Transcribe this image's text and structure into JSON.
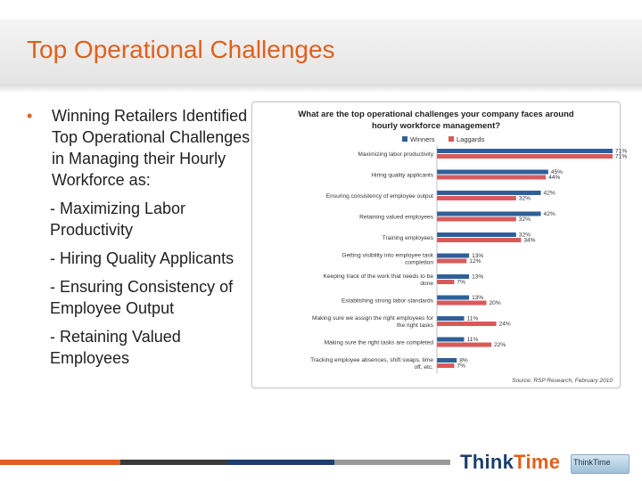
{
  "slide": {
    "title": "Top Operational Challenges",
    "bullet_main": "Winning Retailers Identified Top Operational Challenges in Managing their Hourly Workforce as:",
    "sub_items": [
      "- Maximizing Labor Productivity",
      "- Hiring Quality Applicants",
      "- Ensuring Consistency of Employee Output",
      "- Retaining Valued Employees"
    ]
  },
  "footer": {
    "logo_part1": "Think",
    "logo_part2": "Time",
    "badge_text": "ThinkTime"
  },
  "colors": {
    "accent": "#e0601c",
    "winners": "#2e5f9a",
    "laggards": "#d9595b"
  },
  "chart_data": {
    "type": "bar",
    "orientation": "horizontal",
    "title": "What are the top operational challenges your company faces around hourly workforce management?",
    "source": "Source: RSP Research, February 2010",
    "legend_position": "top",
    "categories": [
      "Maximizing labor productivity",
      "Hiring quality applicants",
      "Ensuring consistency of employee output",
      "Retaining valued employees",
      "Training employees",
      "Getting visibility into employee task completion",
      "Keeping track of the work that needs to be done",
      "Establishing strong labor standards",
      "Making sure we assign the right employees for the right tasks",
      "Making sure the right tasks are completed",
      "Tracking employee absences, shift swaps, time off, etc."
    ],
    "series": [
      {
        "name": "Winners",
        "values": [
          71,
          45,
          42,
          42,
          32,
          13,
          13,
          13,
          11,
          11,
          8
        ]
      },
      {
        "name": "Laggards",
        "values": [
          71,
          44,
          32,
          32,
          34,
          12,
          7,
          20,
          24,
          22,
          7
        ]
      }
    ],
    "value_suffix": "%",
    "xlim": [
      0,
      71
    ],
    "grid": false
  }
}
